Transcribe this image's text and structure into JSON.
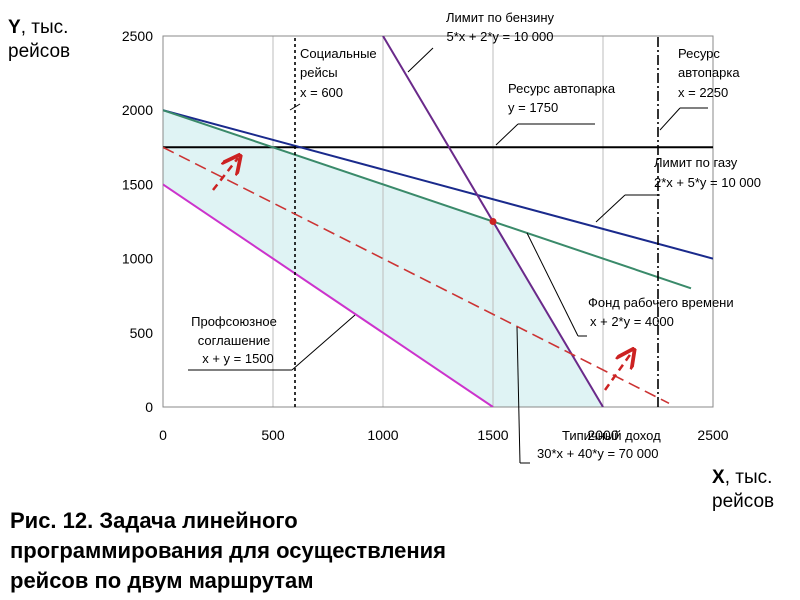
{
  "chart_data": {
    "type": "line",
    "ylabel_bold": "Y",
    "ylabel_rest": ", тыс.",
    "ylabel_line2": "рейсов",
    "xlabel_bold": "X",
    "xlabel_rest": ", тыс.",
    "xlabel_line2": "рейсов",
    "xlim": [
      0,
      2500
    ],
    "ylim": [
      0,
      2500
    ],
    "x_ticks": [
      0,
      500,
      1000,
      1500,
      2000,
      2500
    ],
    "y_ticks": [
      0,
      500,
      1000,
      1500,
      2000,
      2500
    ],
    "grid": "vertical",
    "feasible_region": [
      [
        0,
        2000
      ],
      [
        1500,
        1250
      ],
      [
        2000,
        0
      ],
      [
        1500,
        0
      ],
      [
        0,
        1500
      ]
    ],
    "optimum_point": [
      1500,
      1250
    ],
    "series": [
      {
        "id": "vehicle_resource_y",
        "points": [
          [
            0,
            1750
          ],
          [
            2500,
            1750
          ]
        ],
        "color": "#000000",
        "style": "solid"
      },
      {
        "id": "gas_limit",
        "points": [
          [
            0,
            2000
          ],
          [
            2500,
            1000
          ]
        ],
        "color": "#1a2a8c",
        "style": "solid"
      },
      {
        "id": "work_time",
        "points": [
          [
            0,
            2000
          ],
          [
            2400,
            800
          ]
        ],
        "color": "#3a8a6a",
        "style": "solid"
      },
      {
        "id": "petrol_limit",
        "points": [
          [
            1000,
            2500
          ],
          [
            2000,
            0
          ]
        ],
        "color": "#6a2a8a",
        "style": "solid"
      },
      {
        "id": "union_agreement",
        "points": [
          [
            0,
            1500
          ],
          [
            1500,
            0
          ]
        ],
        "color": "#cc33cc",
        "style": "solid"
      },
      {
        "id": "social_x",
        "points": [
          [
            600,
            0
          ],
          [
            600,
            2500
          ]
        ],
        "color": "#000000",
        "style": "dotted"
      },
      {
        "id": "vehicle_resource_x",
        "points": [
          [
            2250,
            0
          ],
          [
            2250,
            2500
          ]
        ],
        "color": "#000000",
        "style": "dashdot"
      },
      {
        "id": "typical_income",
        "points": [
          [
            0,
            1750
          ],
          [
            2300,
            25
          ]
        ],
        "color": "#cc3333",
        "style": "dashed"
      }
    ],
    "annotations": {
      "petrol": [
        "Лимит по бензину",
        "5*x + 2*y = 10 000"
      ],
      "social": [
        "Социальные",
        "рейсы",
        "x = 600"
      ],
      "resource_x": [
        "Ресурс",
        "автопарка",
        "x = 2250"
      ],
      "resource_y": [
        "Ресурс автопарка",
        "y = 1750"
      ],
      "gas": [
        "Лимит по газу",
        "2*x + 5*y = 10 000"
      ],
      "work": [
        "Фонд рабочего времени",
        "x + 2*y = 4000"
      ],
      "union": [
        "Профсоюзное",
        "соглашение",
        "x + y = 1500"
      ],
      "income": [
        "Типичный доход",
        "30*x + 40*y = 70 000"
      ]
    }
  },
  "caption_lines": [
    "Рис. 12. Задача линейного",
    "программирования для осуществления",
    "рейсов по двум маршрутам"
  ]
}
